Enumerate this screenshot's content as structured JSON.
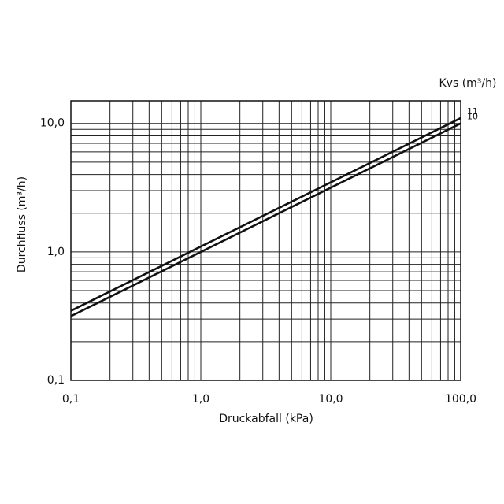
{
  "chart_data": {
    "type": "line",
    "x_label": "Druckabfall (kPa)",
    "y_label": "Durchfluss (m³/h)",
    "legend_title": "Kvs (m³/h)",
    "x": [
      0.1,
      100
    ],
    "log_x": true,
    "log_y": true,
    "grid": true,
    "xlim": [
      0.1,
      100
    ],
    "ylim": [
      0.1,
      15
    ],
    "xticks": [
      {
        "value": 0.1,
        "label": "0,1"
      },
      {
        "value": 1,
        "label": "1,0"
      },
      {
        "value": 10,
        "label": "10,0"
      },
      {
        "value": 100,
        "label": "100,0"
      }
    ],
    "yticks": [
      {
        "value": 0.1,
        "label": "0,1"
      },
      {
        "value": 1,
        "label": "1,0"
      },
      {
        "value": 10,
        "label": "10,0"
      }
    ],
    "x_minor_grid": [
      0.2,
      0.3,
      0.4,
      0.5,
      0.6,
      0.7,
      0.8,
      0.9,
      2,
      3,
      4,
      5,
      6,
      7,
      8,
      9,
      20,
      30,
      40,
      50,
      60,
      70,
      80,
      90
    ],
    "y_minor_grid": [
      0.2,
      0.3,
      0.4,
      0.5,
      0.6,
      0.7,
      0.8,
      0.9,
      2,
      3,
      4,
      5,
      6,
      7,
      8,
      9
    ],
    "series": [
      {
        "name": "11",
        "color": "#111111",
        "values": [
          0.348,
          11
        ]
      },
      {
        "name": "10",
        "color": "#111111",
        "values": [
          0.316,
          10
        ]
      }
    ]
  }
}
